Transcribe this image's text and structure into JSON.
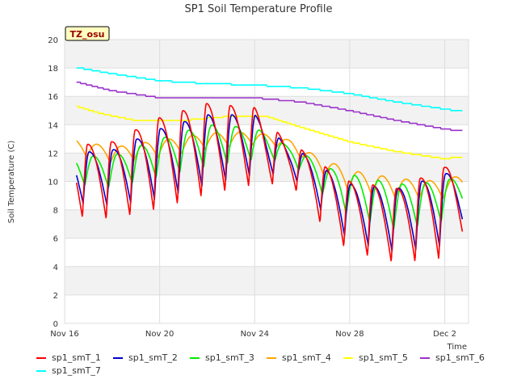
{
  "chart_data": {
    "type": "line",
    "title": "SP1 Soil Temperature Profile",
    "xlabel": "Time",
    "ylabel": "Soil Temperature (C)",
    "badge": "TZ_osu",
    "ylim": [
      0,
      20
    ],
    "xlim": [
      0,
      17
    ],
    "y_ticks": [
      "0",
      "2",
      "4",
      "6",
      "8",
      "10",
      "12",
      "14",
      "16",
      "18",
      "20"
    ],
    "x_ticks": [
      {
        "label": "Nov 16",
        "day": 0
      },
      {
        "label": "Nov 20",
        "day": 4
      },
      {
        "label": "Nov 24",
        "day": 8
      },
      {
        "label": "Nov 28",
        "day": 12
      },
      {
        "label": "Dec 2",
        "day": 16
      }
    ],
    "grid": true,
    "colors": {
      "sp1_smT_1": "#ff0000",
      "sp1_smT_2": "#0000cc",
      "sp1_smT_3": "#00ee00",
      "sp1_smT_4": "#ffa500",
      "sp1_smT_5": "#ffff00",
      "sp1_smT_6": "#9932cc",
      "sp1_smT_7": "#00ffff",
      "badge_bg": "#ffffc0",
      "badge_text": "#990000",
      "band": "#f2f2f2"
    },
    "series": [
      {
        "name": "sp1_smT_1",
        "params": {
          "phase": 0.75,
          "width": 0.22,
          "x": [
            0.3,
            2,
            4,
            6,
            8,
            9.5,
            10,
            11,
            12,
            14,
            16,
            17
          ],
          "min": [
            7.5,
            7.3,
            8,
            9,
            9.7,
            9.8,
            8.8,
            6.5,
            5,
            4.2,
            4.5,
            7
          ],
          "max": [
            12.5,
            12.8,
            14.5,
            15.5,
            15.2,
            12.5,
            12.2,
            11,
            10,
            9.5,
            11,
            12.5
          ]
        }
      },
      {
        "name": "sp1_smT_2",
        "params": {
          "phase": 0.78,
          "width": 0.25,
          "x": [
            0.3,
            2,
            4,
            6,
            8,
            9.5,
            10,
            11,
            12,
            14,
            16,
            17
          ],
          "min": [
            8.5,
            8.3,
            8.8,
            9.8,
            10.5,
            10.5,
            9.6,
            7.5,
            5.8,
            5,
            5.5,
            7.5
          ],
          "max": [
            12,
            12.2,
            13.7,
            14.7,
            14.7,
            12.3,
            12,
            10.8,
            9.8,
            9.5,
            10.5,
            11.5
          ]
        }
      },
      {
        "name": "sp1_smT_3",
        "params": {
          "phase": 0.85,
          "width": 0.35,
          "x": [
            0.3,
            2,
            4,
            6,
            8,
            9.5,
            10,
            11,
            12,
            14,
            16,
            17
          ],
          "min": [
            9.8,
            9.5,
            10.3,
            11,
            11.5,
            11.4,
            10.5,
            8.8,
            7.5,
            6.5,
            7.2,
            8.5
          ],
          "max": [
            11.8,
            11.8,
            13,
            14,
            13.8,
            12.4,
            12,
            11,
            10.5,
            9.8,
            10,
            10.8
          ]
        }
      },
      {
        "name": "sp1_smT_4",
        "params": {
          "phase": 0.92,
          "width": 0.45,
          "x": [
            0.3,
            2,
            4,
            6,
            8,
            9.5,
            10,
            11,
            12,
            14,
            16,
            17
          ],
          "min": [
            12,
            11.3,
            11.7,
            12.3,
            12.6,
            12.3,
            11.5,
            10.3,
            9.3,
            8.8,
            8.8,
            9.5
          ],
          "max": [
            13,
            12.4,
            12.9,
            13.4,
            13.5,
            12.9,
            12.3,
            11.5,
            10.8,
            10.2,
            10,
            10.8
          ]
        }
      },
      {
        "name": "sp1_smT_5",
        "params": {
          "x": [
            0.3,
            1.5,
            3,
            5,
            7,
            8.5,
            10,
            12,
            14,
            16,
            17
          ],
          "v": [
            15.4,
            14.8,
            14.3,
            14.3,
            14.6,
            14.6,
            13.8,
            12.8,
            12.1,
            11.6,
            11.8
          ]
        }
      },
      {
        "name": "sp1_smT_6",
        "params": {
          "x": [
            0.3,
            2,
            4,
            6,
            8,
            10,
            12,
            14,
            16,
            17
          ],
          "v": [
            17.1,
            16.4,
            15.9,
            15.9,
            15.9,
            15.6,
            15.0,
            14.3,
            13.7,
            13.5
          ]
        }
      },
      {
        "name": "sp1_smT_7",
        "params": {
          "x": [
            0.3,
            2,
            4,
            6,
            8,
            10,
            12,
            14,
            16,
            17
          ],
          "v": [
            18.1,
            17.6,
            17.1,
            16.9,
            16.8,
            16.6,
            16.2,
            15.6,
            15.1,
            14.9
          ]
        }
      }
    ]
  }
}
